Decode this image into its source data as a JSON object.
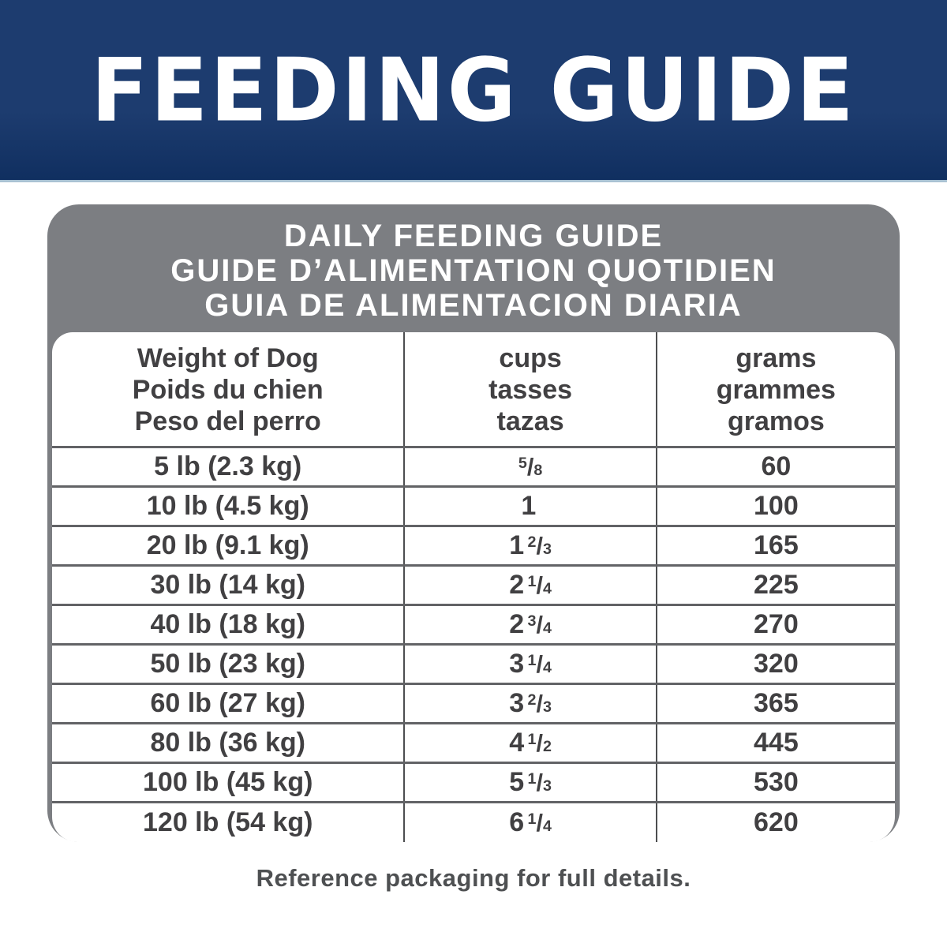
{
  "banner": {
    "title": "FEEDING GUIDE"
  },
  "colors": {
    "banner_blue": "#1d3c6f",
    "banner_blue_dark": "#102f60",
    "banner_bottom_edge": "#a9c2d3",
    "card_gray": "#7c7e82",
    "text_dark": "#414042",
    "divider_vertical": "#4d4e50",
    "divider_horizontal": "#626366",
    "footer_text": "#4e5052"
  },
  "table": {
    "title_lines": [
      "DAILY FEEDING GUIDE",
      "GUIDE D’ALIMENTATION QUOTIDIEN",
      "GUIA DE ALIMENTACION DIARIA"
    ],
    "columns": [
      {
        "lines": [
          "Weight of Dog",
          "Poids du chien",
          "Peso del perro"
        ]
      },
      {
        "lines": [
          "cups",
          "tasses",
          "tazas"
        ]
      },
      {
        "lines": [
          "grams",
          "grammes",
          "gramos"
        ]
      }
    ],
    "rows": [
      {
        "weight": "5 lb (2.3 kg)",
        "cups": {
          "whole": "",
          "num": "5",
          "den": "8"
        },
        "grams": "60"
      },
      {
        "weight": "10 lb (4.5 kg)",
        "cups": {
          "whole": "1",
          "num": "",
          "den": ""
        },
        "grams": "100"
      },
      {
        "weight": "20 lb (9.1 kg)",
        "cups": {
          "whole": "1",
          "num": "2",
          "den": "3"
        },
        "grams": "165"
      },
      {
        "weight": "30 lb (14 kg)",
        "cups": {
          "whole": "2",
          "num": "1",
          "den": "4"
        },
        "grams": "225"
      },
      {
        "weight": "40 lb (18 kg)",
        "cups": {
          "whole": "2",
          "num": "3",
          "den": "4"
        },
        "grams": "270"
      },
      {
        "weight": "50 lb (23 kg)",
        "cups": {
          "whole": "3",
          "num": "1",
          "den": "4"
        },
        "grams": "320"
      },
      {
        "weight": "60 lb (27 kg)",
        "cups": {
          "whole": "3",
          "num": "2",
          "den": "3"
        },
        "grams": "365"
      },
      {
        "weight": "80 lb (36 kg)",
        "cups": {
          "whole": "4",
          "num": "1",
          "den": "2"
        },
        "grams": "445"
      },
      {
        "weight": "100 lb (45 kg)",
        "cups": {
          "whole": "5",
          "num": "1",
          "den": "3"
        },
        "grams": "530"
      },
      {
        "weight": "120 lb (54 kg)",
        "cups": {
          "whole": "6",
          "num": "1",
          "den": "4"
        },
        "grams": "620"
      }
    ]
  },
  "footer": {
    "note": "Reference packaging for full details."
  }
}
